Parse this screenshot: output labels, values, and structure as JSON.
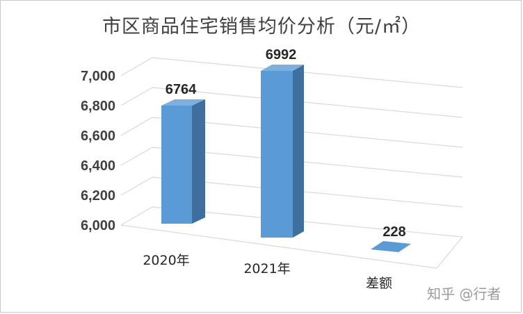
{
  "chart_data": {
    "type": "bar",
    "title": "市区商品住宅销售均价分析（元/㎡）",
    "categories": [
      "2020年",
      "2021年",
      "差额"
    ],
    "values": [
      6764,
      6992,
      228
    ],
    "data_labels": [
      "6764",
      "6992",
      "228"
    ],
    "ylim": [
      6000,
      7000
    ],
    "yticks": [
      "6,000",
      "6,200",
      "6,400",
      "6,600",
      "6,800",
      "7,000"
    ],
    "grid": true,
    "legend": "none",
    "style": "3d-column",
    "colors": {
      "front": "#5b9bd5",
      "side": "#3e6f9e",
      "top": "#7fb0dd",
      "grid": "#d9d9d9"
    }
  },
  "watermark": "知乎 @行者"
}
